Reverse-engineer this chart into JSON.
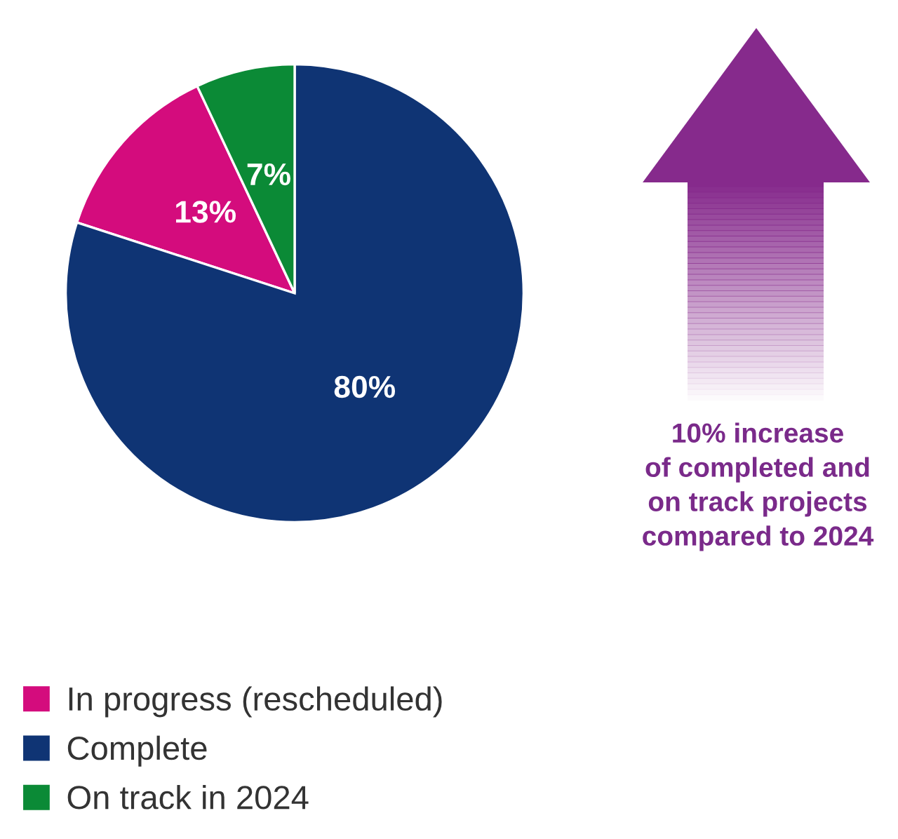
{
  "chart_data": {
    "type": "pie",
    "categories": [
      "In progress (rescheduled)",
      "Complete",
      "On track in 2024"
    ],
    "values": [
      13,
      80,
      7
    ],
    "colors": [
      "#d40c7d",
      "#0f3474",
      "#0b8a36"
    ],
    "value_labels": [
      "13%",
      "80%",
      "7%"
    ],
    "legend": "bottom left",
    "annotations": [
      "10% increase\nof completed and\non track projects\ncompared to 2024"
    ]
  }
}
